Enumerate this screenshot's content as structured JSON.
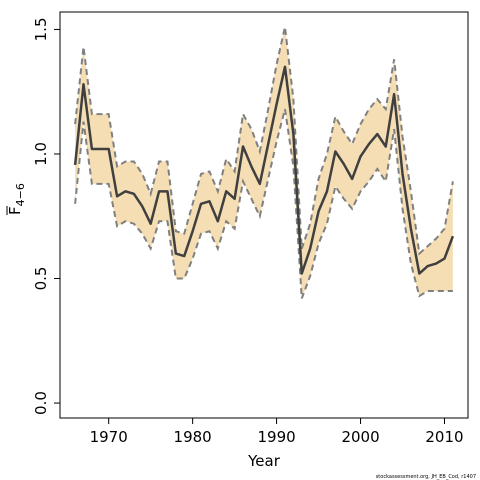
{
  "chart_data": {
    "type": "line",
    "x_label": "Year",
    "y_label": {
      "main": "F",
      "sub": "4−6"
    },
    "credit": "stockassessment.org, JH_EB_Cod, r1407",
    "x": [
      1966,
      1967,
      1968,
      1969,
      1970,
      1971,
      1972,
      1973,
      1974,
      1975,
      1976,
      1977,
      1978,
      1979,
      1980,
      1981,
      1982,
      1983,
      1984,
      1985,
      1986,
      1987,
      1988,
      1989,
      1990,
      1991,
      1992,
      1993,
      1994,
      1995,
      1996,
      1997,
      1998,
      1999,
      2000,
      2001,
      2002,
      2003,
      2004,
      2005,
      2006,
      2007,
      2008,
      2009,
      2010,
      2011
    ],
    "values": [
      0.956,
      1.28,
      1.02,
      1.02,
      1.02,
      0.83,
      0.85,
      0.84,
      0.79,
      0.72,
      0.85,
      0.85,
      0.6,
      0.59,
      0.69,
      0.8,
      0.81,
      0.73,
      0.85,
      0.82,
      1.03,
      0.95,
      0.88,
      1.04,
      1.2,
      1.35,
      1.08,
      0.52,
      0.62,
      0.77,
      0.85,
      1.01,
      0.96,
      0.9,
      0.99,
      1.04,
      1.08,
      1.03,
      1.24,
      0.92,
      0.7,
      0.52,
      0.55,
      0.56,
      0.58,
      0.67
    ],
    "upper": [
      1.12,
      1.43,
      1.16,
      1.16,
      1.16,
      0.95,
      0.97,
      0.97,
      0.92,
      0.84,
      0.97,
      0.97,
      0.69,
      0.68,
      0.8,
      0.92,
      0.93,
      0.85,
      0.98,
      0.93,
      1.16,
      1.1,
      1.01,
      1.18,
      1.36,
      1.51,
      1.22,
      0.62,
      0.72,
      0.9,
      1.0,
      1.15,
      1.09,
      1.04,
      1.12,
      1.18,
      1.22,
      1.18,
      1.38,
      1.07,
      0.85,
      0.6,
      0.63,
      0.66,
      0.7,
      0.89
    ],
    "lower": [
      0.8,
      1.13,
      0.88,
      0.88,
      0.88,
      0.71,
      0.73,
      0.72,
      0.68,
      0.62,
      0.73,
      0.73,
      0.5,
      0.5,
      0.58,
      0.68,
      0.69,
      0.62,
      0.73,
      0.7,
      0.89,
      0.82,
      0.75,
      0.9,
      1.05,
      1.18,
      0.95,
      0.42,
      0.51,
      0.64,
      0.72,
      0.87,
      0.82,
      0.78,
      0.85,
      0.89,
      0.94,
      0.89,
      1.1,
      0.78,
      0.56,
      0.43,
      0.45,
      0.45,
      0.45,
      0.45
    ],
    "line_color": "#404040",
    "band_color": "#f5deb3",
    "band_edge_color": "#808080",
    "xlim": [
      1964.2,
      2012.8
    ],
    "ylim": [
      -0.06,
      1.57
    ],
    "xticks": [
      1970,
      1980,
      1990,
      2000,
      2010
    ],
    "yticks": [
      {
        "value": 0,
        "label": "0.0"
      },
      0.5,
      {
        "value": 1,
        "label": "1.0"
      },
      1.5
    ]
  }
}
